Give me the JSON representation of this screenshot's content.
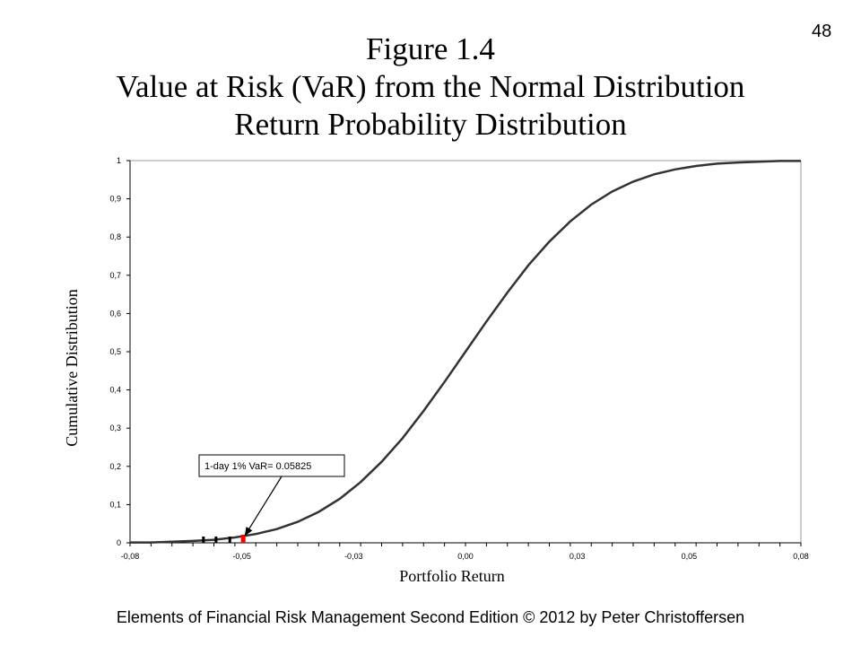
{
  "slide": {
    "number": "48",
    "title_lines": [
      "Figure 1.4",
      "Value at Risk (VaR) from the Normal Distribution",
      "Return Probability Distribution"
    ],
    "footer": "Elements of Financial Risk Management Second Edition © 2012  by Peter Christoffersen"
  },
  "chart_data": {
    "type": "line",
    "title": "",
    "xlabel": "Portfolio Return",
    "ylabel": "Cumulative Distribution",
    "xlim": [
      -0.08,
      0.08
    ],
    "ylim": [
      0,
      1
    ],
    "x_tick_labels": [
      "-0,08",
      "-0,05",
      "-0,03",
      "0,00",
      "0,03",
      "0,05",
      "0,08"
    ],
    "y_tick_labels": [
      "0",
      "0,1",
      "0,2",
      "0,3",
      "0,4",
      "0,5",
      "0,6",
      "0,7",
      "0,8",
      "0,9",
      "1"
    ],
    "grid": false,
    "distribution": {
      "mean": 0,
      "sd": 0.025
    },
    "series": [
      {
        "x": [
          -0.08,
          -0.075,
          -0.07,
          -0.065,
          -0.06,
          -0.055,
          -0.05,
          -0.045,
          -0.04,
          -0.035,
          -0.03,
          -0.025,
          -0.02,
          -0.015,
          -0.01,
          -0.005,
          0,
          0.005,
          0.01,
          0.015,
          0.02,
          0.025,
          0.03,
          0.035,
          0.04,
          0.045,
          0.05,
          0.055,
          0.06,
          0.065,
          0.07,
          0.075,
          0.08
        ],
        "values": [
          0.001,
          0.001,
          0.003,
          0.005,
          0.008,
          0.014,
          0.023,
          0.036,
          0.055,
          0.081,
          0.115,
          0.159,
          0.212,
          0.274,
          0.345,
          0.421,
          0.5,
          0.579,
          0.655,
          0.726,
          0.788,
          0.841,
          0.885,
          0.919,
          0.945,
          0.964,
          0.977,
          0.986,
          0.992,
          0.995,
          0.997,
          0.999,
          0.999
        ]
      }
    ],
    "tail_markers": [
      {
        "x": -0.0625,
        "y": 0,
        "color": "#000000"
      },
      {
        "x": -0.0595,
        "y": 0,
        "color": "#000000"
      },
      {
        "x": -0.0562,
        "y": 0,
        "color": "#000000"
      },
      {
        "x": -0.053,
        "y": 0,
        "color": "#ff0000"
      }
    ],
    "annotation": {
      "text": "1-day 1% VaR= 0.05825",
      "x": -0.053,
      "y": 0.01
    },
    "colors": {
      "line": "#333333",
      "var_marker": "#ff0000",
      "axis": "#000000"
    }
  }
}
